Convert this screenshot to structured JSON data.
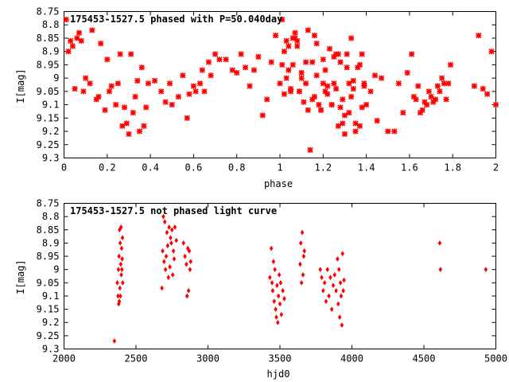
{
  "chart_data": [
    {
      "type": "scatter",
      "title": "175453-1527.5 phased with P=50.040day",
      "xlabel": "phase",
      "ylabel": "I[mag]",
      "xlim": [
        0,
        2
      ],
      "ylim": [
        9.3,
        8.75
      ],
      "y_inverted": true,
      "x_ticks": [
        "0",
        "0.2",
        "0.4",
        "0.6",
        "0.8",
        "1",
        "1.2",
        "1.4",
        "1.6",
        "1.8",
        "2"
      ],
      "y_ticks": [
        "8.75",
        "8.8",
        "8.85",
        "8.9",
        "8.95",
        "9",
        "9.05",
        "9.1",
        "9.15",
        "9.2",
        "9.25",
        "9.3"
      ],
      "grid": false,
      "legend": "none",
      "marker_color": "#ff0000",
      "series": [
        {
          "x": [
            0.01,
            0.02,
            0.03,
            0.04,
            0.05,
            0.06,
            0.07,
            0.08,
            0.09,
            0.1,
            0.12,
            0.13,
            0.15,
            0.16,
            0.17,
            0.19,
            0.2,
            0.21,
            0.22,
            0.24,
            0.25,
            0.26,
            0.27,
            0.28,
            0.29,
            0.3,
            0.31,
            0.32,
            0.33,
            0.34,
            0.35,
            0.36,
            0.37,
            0.38,
            0.39,
            0.42,
            0.45,
            0.47,
            0.49,
            0.5,
            0.53,
            0.55,
            0.57,
            0.58,
            0.6,
            0.61,
            0.63,
            0.64,
            0.65,
            0.67,
            0.68,
            0.7,
            0.72,
            0.75,
            0.78,
            0.8,
            0.82,
            0.84,
            0.86,
            0.88,
            0.9,
            0.92,
            0.94,
            0.96,
            0.98,
            1.0,
            1.01,
            1.02,
            1.03,
            1.04,
            1.05,
            1.06,
            1.07,
            1.08,
            1.09,
            1.1,
            1.11,
            1.12,
            1.13,
            1.14,
            1.15,
            1.16,
            1.17,
            1.18,
            1.19,
            1.2,
            1.21,
            1.22,
            1.23,
            1.24,
            1.25,
            1.26,
            1.27,
            1.28,
            1.29,
            1.3,
            1.31,
            1.32,
            1.33,
            1.34,
            1.35,
            1.37,
            1.38,
            1.39,
            1.4,
            1.42,
            1.44,
            1.45,
            1.47,
            1.5,
            1.53,
            1.55,
            1.57,
            1.59,
            1.61,
            1.62,
            1.63,
            1.64,
            1.65,
            1.66,
            1.67,
            1.68,
            1.69,
            1.7,
            1.71,
            1.72,
            1.73,
            1.74,
            1.75,
            1.76,
            1.77,
            1.78,
            1.79,
            1.9,
            1.92,
            1.94,
            1.96,
            1.98,
            2.0
          ],
          "y": [
            8.78,
            8.9,
            8.86,
            8.88,
            9.04,
            8.85,
            8.83,
            8.86,
            9.05,
            9.0,
            9.02,
            8.82,
            9.08,
            9.07,
            8.87,
            9.12,
            8.93,
            9.05,
            9.03,
            9.1,
            9.02,
            8.91,
            9.18,
            9.11,
            9.17,
            9.21,
            8.91,
            9.13,
            9.07,
            9.01,
            9.2,
            8.96,
            9.18,
            9.11,
            9.02,
            9.01,
            9.05,
            9.09,
            9.02,
            9.1,
            9.07,
            8.99,
            9.15,
            9.06,
            9.03,
            9.05,
            9.02,
            8.97,
            9.05,
            8.94,
            8.99,
            8.91,
            8.93,
            8.93,
            8.97,
            8.98,
            8.91,
            8.96,
            9.03,
            8.97,
            8.92,
            9.14,
            9.08,
            8.94,
            8.84,
            9.02,
            8.95,
            9.06,
            9.0,
            8.97,
            9.05,
            8.95,
            8.85,
            8.88,
            9.05,
            8.98,
            9.09,
            8.94,
            9.12,
            9.27,
            8.94,
            8.84,
            8.99,
            9.1,
            9.12,
            9.02,
            8.97,
            9.06,
            8.89,
            9.1,
            8.92,
            9.04,
            8.91,
            8.94,
            9.08,
            9.14,
            8.96,
            9.02,
            8.85,
            9.04,
            9.17,
            8.95,
            8.91,
            9.03,
            9.1,
            9.05,
            8.99,
            9.16,
            9.0,
            9.2,
            9.2,
            9.02,
            9.13,
            8.98,
            8.91,
            9.07,
            9.08,
            9.03,
            9.13,
            9.12,
            9.09,
            9.1,
            9.05,
            9.07,
            9.09,
            9.08,
            9.03,
            9.05,
            9.0,
            9.02,
            9.08,
            9.02,
            8.95,
            9.03,
            8.84,
            9.04,
            9.06,
            8.9,
            9.1
          ],
          "marker": "x"
        },
        {
          "x": [
            1.01,
            1.02,
            1.03,
            1.04,
            1.05,
            1.06,
            1.07,
            1.08,
            1.09,
            1.1,
            1.12,
            1.13,
            1.15,
            1.16,
            1.17,
            1.19,
            1.2,
            1.21,
            1.22,
            1.24,
            1.25,
            1.26,
            1.27,
            1.28,
            1.29,
            1.3,
            1.31,
            1.32,
            1.33,
            1.34,
            1.35,
            1.36,
            1.37,
            1.38,
            1.39
          ],
          "y": [
            8.78,
            8.9,
            8.86,
            8.88,
            9.04,
            8.85,
            8.83,
            8.86,
            9.05,
            9.0,
            9.02,
            8.82,
            9.08,
            9.07,
            8.87,
            9.12,
            8.93,
            9.05,
            9.03,
            9.1,
            9.02,
            8.91,
            9.18,
            9.11,
            9.17,
            9.21,
            8.91,
            9.13,
            9.07,
            9.01,
            9.2,
            8.96,
            9.18,
            9.11,
            9.02
          ],
          "marker": "x",
          "note": "second-cycle duplicates are drawn only where visible"
        }
      ]
    },
    {
      "type": "scatter",
      "title": "175453-1527.5 not phased light curve",
      "xlabel": "hjd0",
      "ylabel": "I[mag]",
      "xlim": [
        2000,
        5000
      ],
      "ylim": [
        9.3,
        8.75
      ],
      "y_inverted": true,
      "x_ticks": [
        "2000",
        "2500",
        "3000",
        "3500",
        "4000",
        "4500",
        "5000"
      ],
      "y_ticks": [
        "8.75",
        "8.8",
        "8.85",
        "8.9",
        "8.95",
        "9",
        "9.05",
        "9.1",
        "9.15",
        "9.2",
        "9.25",
        "9.3"
      ],
      "grid": false,
      "legend": "none",
      "marker_color": "#ff0000",
      "series": [
        {
          "x": [
            2350,
            2370,
            2375,
            2378,
            2380,
            2382,
            2384,
            2386,
            2388,
            2390,
            2392,
            2394,
            2396,
            2398,
            2400,
            2402,
            2404,
            2406,
            2408,
            2680,
            2685,
            2690,
            2695,
            2700,
            2705,
            2710,
            2715,
            2720,
            2725,
            2730,
            2735,
            2740,
            2745,
            2750,
            2755,
            2760,
            2765,
            2770,
            2780,
            2830,
            2840,
            2850,
            2855,
            2860,
            2865,
            2870,
            2875,
            2880,
            3430,
            3440,
            3445,
            3450,
            3455,
            3460,
            3465,
            3470,
            3475,
            3480,
            3485,
            3490,
            3495,
            3500,
            3505,
            3510,
            3520,
            3530,
            3640,
            3645,
            3650,
            3655,
            3660,
            3665,
            3670,
            3780,
            3790,
            3800,
            3810,
            3820,
            3830,
            3840,
            3850,
            3860,
            3870,
            3880,
            3890,
            3900,
            3905,
            3910,
            3915,
            3920,
            3925,
            3930,
            3935,
            3940,
            3945,
            4610,
            4615,
            4930
          ],
          "y": [
            9.27,
            9.05,
            9.1,
            9.0,
            9.13,
            8.95,
            9.12,
            8.85,
            9.07,
            8.9,
            9.1,
            8.98,
            8.84,
            9.02,
            8.92,
            9.0,
            8.96,
            8.88,
            9.05,
            9.07,
            8.93,
            8.8,
            8.97,
            8.82,
            9.0,
            8.95,
            8.86,
            8.91,
            9.03,
            8.84,
            8.99,
            8.88,
            8.9,
            8.85,
            9.02,
            8.93,
            8.96,
            8.84,
            8.89,
            8.9,
            8.95,
            8.98,
            9.1,
            8.92,
            9.08,
            8.93,
            9.0,
            8.97,
            9.03,
            8.92,
            9.05,
            9.08,
            8.97,
            9.12,
            9.0,
            9.15,
            9.18,
            9.06,
            9.2,
            9.1,
            9.02,
            9.13,
            9.05,
            9.17,
            9.08,
            9.11,
            8.98,
            8.9,
            9.05,
            8.86,
            9.02,
            8.95,
            8.93,
            9.0,
            9.03,
            9.08,
            9.05,
            9.12,
            9.0,
            9.1,
            9.03,
            9.15,
            9.06,
            9.02,
            9.08,
            8.96,
            9.13,
            9.0,
            9.18,
            9.05,
            9.1,
            9.21,
            8.94,
            9.08,
            9.04,
            8.9,
            9.0,
            9.0
          ],
          "marker": "diamond"
        }
      ]
    }
  ]
}
